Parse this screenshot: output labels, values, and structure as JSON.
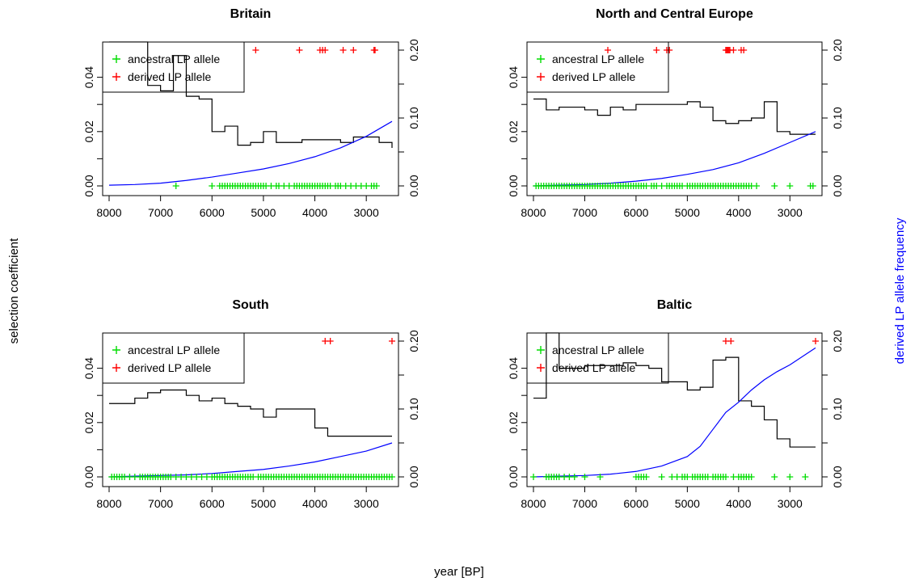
{
  "figure": {
    "left_label": "selection coefficient",
    "right_label": "derived LP allele frequency",
    "bottom_label": "year [BP]",
    "colors": {
      "selection": "#000000",
      "frequency": "#0000ff",
      "ancestral": "#00dd00",
      "derived": "#ff0000"
    }
  },
  "chart_data": [
    {
      "type": "line",
      "title": "Britain",
      "xlim": [
        8000,
        2500
      ],
      "ylim": [
        0,
        0.05
      ],
      "y2lim": [
        0,
        0.2
      ],
      "x_ticks": [
        8000,
        7000,
        6000,
        5000,
        4000,
        3000
      ],
      "y_ticks": [
        "0.00",
        "0.02",
        "0.04"
      ],
      "y2_ticks": [
        "0.00",
        "0.10",
        "0.20"
      ],
      "legend": {
        "position": "top-left",
        "entries": [
          "ancestral LP allele",
          "derived LP allele"
        ]
      },
      "series": [
        {
          "kind": "step",
          "x": [
            8000,
            7250,
            7000,
            6750,
            6500,
            6250,
            6000,
            5750,
            5500,
            5250,
            5000,
            4750,
            4500,
            4250,
            4000,
            3750,
            3500,
            3250,
            3000,
            2750,
            2500
          ],
          "y": [
            0.053,
            0.037,
            0.035,
            0.048,
            0.033,
            0.032,
            0.02,
            0.022,
            0.015,
            0.016,
            0.02,
            0.016,
            0.016,
            0.017,
            0.017,
            0.017,
            0.016,
            0.018,
            0.018,
            0.016,
            0.014
          ]
        },
        {
          "kind": "curve",
          "x": [
            8000,
            7500,
            7000,
            6500,
            6000,
            5500,
            5000,
            4500,
            4000,
            3500,
            3000,
            2500
          ],
          "y": [
            0.001,
            0.002,
            0.004,
            0.008,
            0.013,
            0.019,
            0.025,
            0.033,
            0.043,
            0.056,
            0.073,
            0.095
          ]
        },
        {
          "kind": "ancestral",
          "x": [
            6700,
            6000,
            5850,
            5800,
            5750,
            5700,
            5650,
            5600,
            5550,
            5500,
            5450,
            5400,
            5350,
            5300,
            5250,
            5200,
            5150,
            5100,
            5050,
            5000,
            4950,
            4850,
            4750,
            4700,
            4600,
            4500,
            4400,
            4350,
            4300,
            4250,
            4200,
            4150,
            4100,
            4050,
            4000,
            3950,
            3900,
            3850,
            3800,
            3750,
            3700,
            3600,
            3550,
            3500,
            3400,
            3300,
            3200,
            3100,
            3000,
            2900,
            2850,
            2800
          ]
        },
        {
          "kind": "derived",
          "x": [
            5150,
            4300,
            3900,
            3850,
            3800,
            3450,
            3250,
            2850,
            2830
          ]
        }
      ]
    },
    {
      "type": "line",
      "title": "North and Central Europe",
      "xlim": [
        8000,
        2500
      ],
      "ylim": [
        0,
        0.05
      ],
      "y2lim": [
        0,
        0.2
      ],
      "x_ticks": [
        8000,
        7000,
        6000,
        5000,
        4000,
        3000
      ],
      "y_ticks": [
        "0.00",
        "0.02",
        "0.04"
      ],
      "y2_ticks": [
        "0.00",
        "0.10",
        "0.20"
      ],
      "legend": {
        "position": "top-left",
        "entries": [
          "ancestral LP allele",
          "derived LP allele"
        ]
      },
      "series": [
        {
          "kind": "step",
          "x": [
            8000,
            7750,
            7500,
            7250,
            7000,
            6750,
            6500,
            6250,
            6000,
            5750,
            5500,
            5250,
            5000,
            4750,
            4500,
            4250,
            4000,
            3750,
            3500,
            3250,
            3000,
            2750,
            2500
          ],
          "y": [
            0.032,
            0.028,
            0.029,
            0.029,
            0.028,
            0.026,
            0.029,
            0.028,
            0.03,
            0.03,
            0.03,
            0.03,
            0.031,
            0.029,
            0.024,
            0.023,
            0.024,
            0.025,
            0.031,
            0.02,
            0.019,
            0.019,
            0.019
          ]
        },
        {
          "kind": "curve",
          "x": [
            8000,
            7500,
            7000,
            6500,
            6000,
            5500,
            5000,
            4500,
            4000,
            3500,
            3000,
            2500
          ],
          "y": [
            0.0,
            0.001,
            0.002,
            0.004,
            0.007,
            0.011,
            0.017,
            0.024,
            0.034,
            0.048,
            0.064,
            0.08
          ]
        },
        {
          "kind": "ancestral",
          "x": [
            7950,
            7900,
            7850,
            7800,
            7750,
            7700,
            7650,
            7600,
            7550,
            7500,
            7450,
            7400,
            7350,
            7300,
            7250,
            7200,
            7150,
            7100,
            7050,
            7000,
            6950,
            6900,
            6850,
            6800,
            6750,
            6700,
            6650,
            6600,
            6550,
            6500,
            6450,
            6400,
            6350,
            6300,
            6250,
            6200,
            6150,
            6100,
            6050,
            6000,
            5950,
            5900,
            5850,
            5800,
            5700,
            5650,
            5600,
            5500,
            5400,
            5350,
            5300,
            5250,
            5200,
            5150,
            5100,
            5000,
            4950,
            4900,
            4850,
            4800,
            4750,
            4700,
            4650,
            4600,
            4550,
            4500,
            4450,
            4400,
            4350,
            4300,
            4250,
            4200,
            4150,
            4100,
            4050,
            4000,
            3950,
            3900,
            3850,
            3800,
            3750,
            3650,
            3300,
            3000,
            2600,
            2550
          ]
        },
        {
          "kind": "derived",
          "x": [
            6550,
            5600,
            5400,
            5350,
            4250,
            4230,
            4210,
            4190,
            4170,
            4100,
            3950,
            3900
          ]
        }
      ]
    },
    {
      "type": "line",
      "title": "South",
      "xlim": [
        8000,
        2500
      ],
      "ylim": [
        0,
        0.05
      ],
      "y2lim": [
        0,
        0.2
      ],
      "x_ticks": [
        8000,
        7000,
        6000,
        5000,
        4000,
        3000
      ],
      "y_ticks": [
        "0.00",
        "0.02",
        "0.04"
      ],
      "y2_ticks": [
        "0.00",
        "0.10",
        "0.20"
      ],
      "legend": {
        "position": "top-left",
        "entries": [
          "ancestral LP allele",
          "derived LP allele"
        ]
      },
      "series": [
        {
          "kind": "step",
          "x": [
            8000,
            7750,
            7500,
            7250,
            7000,
            6750,
            6500,
            6250,
            6000,
            5750,
            5500,
            5250,
            5000,
            4750,
            4500,
            4250,
            4000,
            3750,
            3500,
            3250,
            3000,
            2750,
            2500
          ],
          "y": [
            0.027,
            0.027,
            0.029,
            0.031,
            0.032,
            0.032,
            0.03,
            0.028,
            0.029,
            0.027,
            0.026,
            0.025,
            0.022,
            0.025,
            0.025,
            0.025,
            0.018,
            0.015,
            0.015,
            0.015,
            0.015,
            0.015,
            0.015
          ]
        },
        {
          "kind": "curve",
          "x": [
            8000,
            7500,
            7000,
            6500,
            6000,
            5500,
            5000,
            4500,
            4000,
            3500,
            3000,
            2500
          ],
          "y": [
            0.0,
            0.001,
            0.002,
            0.003,
            0.005,
            0.008,
            0.011,
            0.016,
            0.022,
            0.03,
            0.038,
            0.05
          ]
        },
        {
          "kind": "ancestral",
          "x": [
            7950,
            7900,
            7850,
            7800,
            7750,
            7700,
            7600,
            7500,
            7400,
            7350,
            7300,
            7250,
            7200,
            7150,
            7100,
            7050,
            7000,
            6950,
            6900,
            6850,
            6800,
            6700,
            6600,
            6500,
            6400,
            6300,
            6200,
            6100,
            6000,
            5950,
            5900,
            5850,
            5800,
            5750,
            5700,
            5650,
            5600,
            5550,
            5500,
            5450,
            5400,
            5350,
            5300,
            5250,
            5200,
            5100,
            5050,
            5000,
            4950,
            4900,
            4850,
            4800,
            4750,
            4700,
            4650,
            4600,
            4550,
            4500,
            4450,
            4400,
            4350,
            4300,
            4250,
            4200,
            4150,
            4100,
            4050,
            4000,
            3950,
            3900,
            3850,
            3800,
            3750,
            3700,
            3650,
            3600,
            3550,
            3500,
            3450,
            3400,
            3350,
            3300,
            3250,
            3200,
            3150,
            3100,
            3050,
            3000,
            2950,
            2900,
            2850,
            2800,
            2750,
            2700,
            2650,
            2600,
            2550,
            2500
          ]
        },
        {
          "kind": "derived",
          "x": [
            3800,
            3700,
            2500
          ]
        }
      ]
    },
    {
      "type": "line",
      "title": "Baltic",
      "xlim": [
        8000,
        2500
      ],
      "ylim": [
        0,
        0.05
      ],
      "y2lim": [
        0,
        0.2
      ],
      "x_ticks": [
        8000,
        7000,
        6000,
        5000,
        4000,
        3000
      ],
      "y_ticks": [
        "0.00",
        "0.02",
        "0.04"
      ],
      "y2_ticks": [
        "0.00",
        "0.10",
        "0.20"
      ],
      "legend": {
        "position": "top-left",
        "entries": [
          "ancestral LP allele",
          "derived LP allele"
        ]
      },
      "series": [
        {
          "kind": "step",
          "x": [
            8000,
            7750,
            7500,
            7250,
            7000,
            6750,
            6500,
            6250,
            6000,
            5750,
            5500,
            5250,
            5000,
            4750,
            4500,
            4250,
            4000,
            3750,
            3500,
            3250,
            3000,
            2750,
            2500
          ],
          "y": [
            0.029,
            0.053,
            0.04,
            0.04,
            0.041,
            0.041,
            0.041,
            0.042,
            0.041,
            0.04,
            0.035,
            0.035,
            0.032,
            0.033,
            0.043,
            0.044,
            0.028,
            0.026,
            0.021,
            0.014,
            0.011,
            0.011,
            0.011
          ]
        },
        {
          "kind": "curve",
          "x": [
            8000,
            7500,
            7000,
            6500,
            6000,
            5500,
            5000,
            4750,
            4500,
            4250,
            4000,
            3750,
            3500,
            3250,
            3000,
            2500
          ],
          "y": [
            0.0,
            0.001,
            0.002,
            0.004,
            0.008,
            0.016,
            0.03,
            0.045,
            0.07,
            0.095,
            0.11,
            0.128,
            0.143,
            0.155,
            0.165,
            0.19
          ]
        },
        {
          "kind": "ancestral",
          "x": [
            8000,
            7750,
            7700,
            7650,
            7600,
            7550,
            7500,
            7400,
            7300,
            7200,
            7000,
            6700,
            6000,
            5950,
            5900,
            5850,
            5800,
            5500,
            5300,
            5200,
            5100,
            5050,
            5000,
            4900,
            4850,
            4800,
            4750,
            4700,
            4650,
            4600,
            4500,
            4450,
            4400,
            4350,
            4300,
            4250,
            4100,
            4000,
            3950,
            3900,
            3850,
            3800,
            3750,
            3300,
            3000,
            2700
          ]
        },
        {
          "kind": "derived",
          "x": [
            4250,
            4150,
            2500
          ]
        }
      ]
    }
  ]
}
